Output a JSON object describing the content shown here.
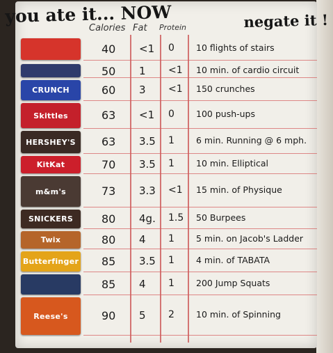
{
  "title": {
    "line1": "you ate it... NOW",
    "line2": "negate it !"
  },
  "headers": {
    "calories": "Calories",
    "fat": "Fat",
    "protein": "Protein"
  },
  "rows": [
    {
      "calories": "40",
      "fat": "<1",
      "protein": "0",
      "exercise": "10 flights of stairs",
      "wrapper_label": "",
      "wrapper_color": "#d6342b"
    },
    {
      "calories": "50",
      "fat": "1",
      "protein": "<1",
      "exercise": "10 min. of cardio circuit",
      "wrapper_label": "",
      "wrapper_color": "#2f3b6c"
    },
    {
      "calories": "60",
      "fat": "3",
      "protein": "<1",
      "exercise": "150 crunches",
      "wrapper_label": "CRUNCH",
      "wrapper_color": "#2945a8"
    },
    {
      "calories": "63",
      "fat": "<1",
      "protein": "0",
      "exercise": "100 push-ups",
      "wrapper_label": "Skittles",
      "wrapper_color": "#c4202b"
    },
    {
      "calories": "63",
      "fat": "3.5",
      "protein": "1",
      "exercise": "6 min. Running @ 6 mph.",
      "wrapper_label": "HERSHEY'S",
      "wrapper_color": "#3a2a24"
    },
    {
      "calories": "70",
      "fat": "3.5",
      "protein": "1",
      "exercise": "10 min. Elliptical",
      "wrapper_label": "KitKat",
      "wrapper_color": "#cc1f2b"
    },
    {
      "calories": "73",
      "fat": "3.3",
      "protein": "<1",
      "exercise": "15 min. of Physique",
      "wrapper_label": "m&m's",
      "wrapper_color": "#4a3a33"
    },
    {
      "calories": "80",
      "fat": "4g.",
      "protein": "1.5",
      "exercise": "50 Burpees",
      "wrapper_label": "SNICKERS",
      "wrapper_color": "#3d2a22"
    },
    {
      "calories": "80",
      "fat": "4",
      "protein": "1",
      "exercise": "5 min. on Jacob's Ladder",
      "wrapper_label": "Twix",
      "wrapper_color": "#b5652a"
    },
    {
      "calories": "85",
      "fat": "3.5",
      "protein": "1",
      "exercise": "4 min. of TABATA",
      "wrapper_label": "Butterfinger",
      "wrapper_color": "#e4a419"
    },
    {
      "calories": "85",
      "fat": "4",
      "protein": "1",
      "exercise": "200 Jump Squats",
      "wrapper_label": "",
      "wrapper_color": "#283a63"
    },
    {
      "calories": "90",
      "fat": "5",
      "protein": "2",
      "exercise": "10 min. of Spinning",
      "wrapper_label": "Reese's",
      "wrapper_color": "#d7581e"
    }
  ]
}
